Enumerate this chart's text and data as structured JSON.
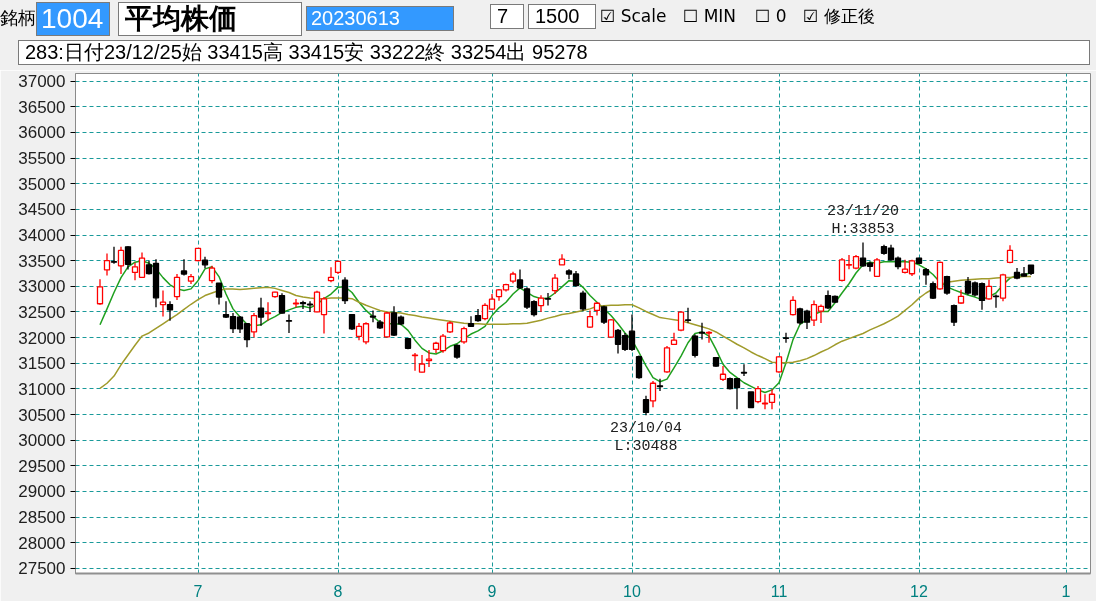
{
  "chart_data": {
    "type": "candlestick",
    "title": "平均株価",
    "subtitle": "283:日付23/12/25始 33415高 33415安 33222終 33254出 95278",
    "annotations": [
      "銘柄",
      "1004",
      "20230613",
      "7",
      "1500",
      "☑ Scale",
      "☐ MIN",
      "☐ 0",
      "☑ 修正後",
      {
        "text": "23/11/20\nH:33853",
        "y": 33853
      },
      {
        "text": "23/10/04\nL:30488",
        "y": 30488
      }
    ],
    "categories": [
      null,
      null,
      null,
      null,
      null,
      null,
      null,
      null,
      null,
      null,
      null,
      null,
      null,
      null,
      "7",
      null,
      null,
      null,
      null,
      null,
      null,
      null,
      null,
      null,
      null,
      null,
      null,
      null,
      null,
      null,
      null,
      null,
      null,
      null,
      "8",
      null,
      null,
      null,
      null,
      null,
      null,
      null,
      null,
      null,
      null,
      null,
      null,
      null,
      null,
      null,
      null,
      null,
      null,
      null,
      null,
      null,
      "9",
      null,
      null,
      null,
      null,
      null,
      null,
      null,
      null,
      null,
      null,
      null,
      null,
      null,
      null,
      null,
      null,
      null,
      null,
      null,
      "10",
      null,
      null,
      null,
      null,
      null,
      null,
      null,
      null,
      null,
      null,
      null,
      null,
      null,
      null,
      null,
      null,
      null,
      null,
      null,
      null,
      "11",
      null,
      null,
      null,
      null,
      null,
      null,
      null,
      null,
      null,
      null,
      null,
      null,
      null,
      null,
      null,
      null,
      null,
      null,
      null,
      "12",
      null,
      null,
      null,
      null,
      null,
      null,
      null,
      null,
      null,
      null,
      null,
      null,
      null,
      null,
      null,
      null,
      null,
      null,
      null,
      null,
      "1",
      null,
      null,
      null
    ],
    "ohlc": [
      [
        32660,
        33140,
        32640,
        32990
      ],
      [
        33320,
        33640,
        33210,
        33500
      ],
      [
        33480,
        33770,
        33440,
        33470
      ],
      [
        33400,
        33770,
        33240,
        33700
      ],
      [
        33770,
        33780,
        33330,
        33430
      ],
      [
        33270,
        33460,
        33120,
        33380
      ],
      [
        33175,
        33660,
        33170,
        33550
      ],
      [
        33420,
        33500,
        33230,
        33250
      ],
      [
        33445,
        33530,
        32590,
        32775
      ],
      [
        32645,
        32920,
        32410,
        32690
      ],
      [
        32645,
        32710,
        32330,
        32540
      ],
      [
        32800,
        33240,
        32735,
        33175
      ],
      [
        33300,
        33530,
        33210,
        33240
      ],
      [
        33100,
        33240,
        33045,
        33190
      ],
      [
        33500,
        33745,
        33490,
        33740
      ],
      [
        33510,
        33575,
        33350,
        33420
      ],
      [
        33110,
        33400,
        33060,
        33355
      ],
      [
        33060,
        33060,
        32645,
        32790
      ],
      [
        32450,
        32710,
        32380,
        32400
      ],
      [
        32410,
        32480,
        32090,
        32175
      ],
      [
        32400,
        32420,
        32090,
        32170
      ],
      [
        32270,
        32270,
        31810,
        31960
      ],
      [
        32110,
        32480,
        32000,
        32430
      ],
      [
        32575,
        32775,
        32230,
        32400
      ],
      [
        32470,
        32690,
        32330,
        32480
      ],
      [
        32800,
        32895,
        32775,
        32885
      ],
      [
        32820,
        32865,
        32470,
        32480
      ],
      [
        32330,
        32450,
        32090,
        32320
      ],
      [
        32660,
        32755,
        32590,
        32670
      ],
      [
        32680,
        32720,
        32560,
        32665
      ],
      [
        32650,
        32710,
        32500,
        32640
      ],
      [
        32500,
        32915,
        32495,
        32885
      ],
      [
        32450,
        32790,
        32080,
        32755
      ],
      [
        33110,
        33370,
        33080,
        33175
      ],
      [
        33270,
        33500,
        33240,
        33485
      ],
      [
        33120,
        33175,
        32655,
        32720
      ],
      [
        32450,
        32460,
        32150,
        32170
      ],
      [
        32025,
        32285,
        31950,
        32220
      ],
      [
        31915,
        32300,
        31870,
        32270
      ],
      [
        32420,
        32530,
        32300,
        32400
      ],
      [
        32300,
        32345,
        32170,
        32190
      ],
      [
        32015,
        32500,
        32000,
        32480
      ],
      [
        32480,
        32610,
        32030,
        32050
      ],
      [
        32400,
        32430,
        32240,
        32270
      ],
      [
        31980,
        31985,
        31775,
        31790
      ],
      [
        31650,
        31700,
        31355,
        31660
      ],
      [
        31325,
        31660,
        31320,
        31485
      ],
      [
        31550,
        31760,
        31425,
        31580
      ],
      [
        31770,
        31920,
        31700,
        31890
      ],
      [
        31745,
        32070,
        31705,
        32030
      ],
      [
        32110,
        32320,
        32090,
        32285
      ],
      [
        31850,
        31870,
        31590,
        31620
      ],
      [
        31915,
        32210,
        31880,
        32175
      ],
      [
        32270,
        32415,
        32210,
        32220
      ],
      [
        32430,
        32560,
        32310,
        32330
      ],
      [
        32370,
        32670,
        32340,
        32630
      ],
      [
        32555,
        32850,
        32545,
        32750
      ],
      [
        32800,
        32950,
        32720,
        32930
      ],
      [
        32930,
        33050,
        32900,
        33035
      ],
      [
        33100,
        33285,
        33060,
        33240
      ],
      [
        33125,
        33330,
        32950,
        32970
      ],
      [
        32950,
        32980,
        32560,
        32595
      ],
      [
        32700,
        32730,
        32410,
        32450
      ],
      [
        32625,
        32825,
        32500,
        32770
      ],
      [
        32760,
        32870,
        32625,
        32750
      ],
      [
        32915,
        33240,
        32850,
        33160
      ],
      [
        33420,
        33625,
        33420,
        33530
      ],
      [
        33300,
        33335,
        33140,
        33240
      ],
      [
        33240,
        33300,
        32995,
        33015
      ],
      [
        32865,
        32915,
        32525,
        32560
      ],
      [
        32205,
        32530,
        32190,
        32410
      ],
      [
        32530,
        32690,
        32430,
        32670
      ],
      [
        32600,
        32620,
        32265,
        32300
      ],
      [
        32010,
        32365,
        32000,
        32345
      ],
      [
        32140,
        32170,
        31690,
        31870
      ],
      [
        32040,
        32090,
        31740,
        31770
      ],
      [
        32125,
        32450,
        31740,
        31770
      ],
      [
        31627,
        31650,
        31200,
        31220
      ],
      [
        30790,
        30865,
        30488,
        30540
      ],
      [
        30765,
        31155,
        30640,
        31110
      ],
      [
        31060,
        31200,
        30960,
        31045
      ],
      [
        31330,
        31835,
        31315,
        31800
      ],
      [
        31867,
        32095,
        31855,
        31950
      ],
      [
        32145,
        32515,
        32125,
        32495
      ],
      [
        32345,
        32580,
        32290,
        32335
      ],
      [
        32030,
        32060,
        31610,
        31655
      ],
      [
        32100,
        32290,
        31965,
        32090
      ],
      [
        32090,
        32125,
        31900,
        32100
      ],
      [
        31610,
        31610,
        31430,
        31445
      ],
      [
        31187,
        31445,
        31155,
        31285
      ],
      [
        31200,
        31220,
        30990,
        31005
      ],
      [
        31200,
        31200,
        30605,
        31025
      ],
      [
        31320,
        31480,
        31250,
        31310
      ],
      [
        30940,
        30940,
        30625,
        30635
      ],
      [
        30750,
        31055,
        30720,
        31005
      ],
      [
        30710,
        30895,
        30605,
        30720
      ],
      [
        30735,
        30995,
        30605,
        30895
      ],
      [
        31330,
        31640,
        31315,
        31625
      ],
      [
        31995,
        32095,
        31900,
        31985
      ],
      [
        32450,
        32805,
        32430,
        32725
      ],
      [
        32560,
        32580,
        32255,
        32290
      ],
      [
        32515,
        32545,
        32170,
        32300
      ],
      [
        32340,
        32725,
        32225,
        32645
      ],
      [
        32515,
        32645,
        32285,
        32610
      ],
      [
        32820,
        32920,
        32560,
        32580
      ],
      [
        32805,
        32820,
        32675,
        32690
      ],
      [
        33115,
        33550,
        33095,
        33515
      ],
      [
        33415,
        33610,
        33335,
        33425
      ],
      [
        33355,
        33610,
        33335,
        33580
      ],
      [
        33550,
        33853,
        33380,
        33400
      ],
      [
        33450,
        33485,
        33290,
        33390
      ],
      [
        33195,
        33550,
        33190,
        33515
      ],
      [
        33775,
        33810,
        33615,
        33645
      ],
      [
        33745,
        33810,
        33505,
        33515
      ],
      [
        33550,
        33580,
        33335,
        33385
      ],
      [
        33270,
        33520,
        33250,
        33335
      ],
      [
        33245,
        33520,
        33200,
        33497
      ],
      [
        33550,
        33555,
        33450,
        33450
      ],
      [
        33325,
        33355,
        33030,
        33225
      ],
      [
        33050,
        33095,
        32755,
        32770
      ],
      [
        32950,
        33485,
        32935,
        33465
      ],
      [
        33190,
        33205,
        32835,
        32870
      ],
      [
        32625,
        32645,
        32225,
        32300
      ],
      [
        32675,
        32935,
        32660,
        32805
      ],
      [
        33095,
        33180,
        32835,
        32870
      ],
      [
        33065,
        33095,
        32805,
        32835
      ],
      [
        33050,
        33075,
        32545,
        32725
      ],
      [
        32755,
        33130,
        32740,
        33000
      ],
      [
        32810,
        32840,
        32580,
        32800
      ],
      [
        32770,
        33245,
        32710,
        33225
      ],
      [
        33465,
        33800,
        33450,
        33700
      ],
      [
        33270,
        33355,
        33140,
        33160
      ],
      [
        33240,
        33375,
        33190,
        33200
      ],
      [
        33415,
        33415,
        33222,
        33254
      ],
      null,
      null,
      null,
      null,
      null,
      null,
      null,
      null
    ],
    "colors": [
      "#ff0000",
      "#ff0000",
      "#000000",
      "#ff0000",
      "#000000",
      "#ff0000",
      "#ff0000",
      "#000000",
      "#000000",
      "#ff0000",
      "#000000",
      "#ff0000",
      "#000000",
      "#ff0000",
      "#ff0000",
      "#000000",
      "#ff0000",
      "#000000",
      "#000000",
      "#000000",
      "#000000",
      "#000000",
      "#ff0000",
      "#000000",
      "#ff0000",
      "#ff0000",
      "#000000",
      "#000000",
      "#ff0000",
      "#000000",
      "#000000",
      "#ff0000",
      "#ff0000",
      "#ff0000",
      "#ff0000",
      "#000000",
      "#000000",
      "#ff0000",
      "#ff0000",
      "#000000",
      "#000000",
      "#ff0000",
      "#000000",
      "#000000",
      "#000000",
      "#ff0000",
      "#ff0000",
      "#ff0000",
      "#ff0000",
      "#ff0000",
      "#ff0000",
      "#000000",
      "#ff0000",
      "#000000",
      "#000000",
      "#ff0000",
      "#ff0000",
      "#ff0000",
      "#ff0000",
      "#ff0000",
      "#000000",
      "#000000",
      "#000000",
      "#ff0000",
      "#000000",
      "#ff0000",
      "#ff0000",
      "#000000",
      "#000000",
      "#000000",
      "#ff0000",
      "#ff0000",
      "#000000",
      "#ff0000",
      "#000000",
      "#000000",
      "#000000",
      "#000000",
      "#000000",
      "#ff0000",
      "#000000",
      "#ff0000",
      "#ff0000",
      "#ff0000",
      "#000000",
      "#000000",
      "#000000",
      "#ff0000",
      "#000000",
      "#ff0000",
      "#000000",
      "#000000",
      "#000000",
      "#000000",
      "#ff0000",
      "#ff0000",
      "#ff0000",
      "#ff0000",
      "#000000",
      "#ff0000",
      "#000000",
      "#000000",
      "#ff0000",
      "#ff0000",
      "#000000",
      "#000000",
      "#ff0000",
      "#ff0000",
      "#ff0000",
      "#000000",
      "#000000",
      "#ff0000",
      "#000000",
      "#000000",
      "#000000",
      "#ff0000",
      "#ff0000",
      "#000000",
      "#000000",
      "#000000",
      "#ff0000",
      "#000000",
      "#000000",
      "#ff0000",
      "#000000",
      "#000000",
      "#000000",
      "#ff0000",
      "#000000",
      "#ff0000",
      "#ff0000",
      "#000000",
      "#000000",
      "#000000",
      null,
      null,
      null,
      null,
      null,
      null,
      null,
      null
    ],
    "series": [
      {
        "type": "line",
        "color": "#1fa01f",
        "values": [
          32250,
          32560,
          32880,
          33170,
          33380,
          33470,
          33500,
          33450,
          33340,
          33170,
          33030,
          32950,
          32920,
          32950,
          33110,
          33340,
          33380,
          33190,
          32850,
          32560,
          32400,
          32260,
          32230,
          32250,
          32340,
          32410,
          32490,
          32540,
          32590,
          32610,
          32580,
          32650,
          32760,
          32850,
          32980,
          32990,
          32880,
          32690,
          32530,
          32410,
          32300,
          32270,
          32270,
          32260,
          32140,
          31950,
          31790,
          31700,
          31680,
          31740,
          31830,
          31880,
          31980,
          32070,
          32130,
          32220,
          32430,
          32580,
          32690,
          32850,
          32970,
          32880,
          32800,
          32760,
          32770,
          32870,
          32990,
          33110,
          33100,
          32980,
          32820,
          32690,
          32560,
          32430,
          32270,
          32090,
          31950,
          31710,
          31450,
          31220,
          31140,
          31190,
          31410,
          31640,
          31900,
          32080,
          32110,
          32030,
          31770,
          31480,
          31320,
          31220,
          31120,
          31050,
          30980,
          30930,
          30980,
          31120,
          31510,
          31960,
          32260,
          32350,
          32450,
          32510,
          32510,
          32680,
          32870,
          33050,
          33260,
          33420,
          33470,
          33450,
          33480,
          33480,
          33480,
          33480,
          33470,
          33420,
          33340,
          33230,
          33080,
          32990,
          32930,
          32880,
          32830,
          32790,
          32740,
          32800,
          32870,
          33030,
          33160,
          33210,
          33230,
          33260,
          null,
          null,
          null,
          null,
          null,
          null,
          null,
          null
        ]
      },
      {
        "type": "line",
        "color": "#a09b2b",
        "values": [
          31010,
          31110,
          31250,
          31470,
          31660,
          31850,
          32030,
          32090,
          32180,
          32270,
          32360,
          32450,
          32550,
          32650,
          32740,
          32820,
          32870,
          32920,
          32950,
          32950,
          32940,
          32950,
          32960,
          32970,
          32980,
          32960,
          32920,
          32880,
          32820,
          32790,
          32770,
          32760,
          32760,
          32770,
          32770,
          32770,
          32760,
          32690,
          32630,
          32580,
          32530,
          32500,
          32490,
          32480,
          32450,
          32430,
          32400,
          32380,
          32360,
          32340,
          32320,
          32300,
          32280,
          32270,
          32270,
          32260,
          32260,
          32260,
          32260,
          32270,
          32270,
          32280,
          32310,
          32340,
          32380,
          32410,
          32450,
          32470,
          32500,
          32530,
          32560,
          32610,
          32620,
          32630,
          32630,
          32640,
          32640,
          32580,
          32510,
          32450,
          32390,
          32370,
          32350,
          32330,
          32290,
          32250,
          32210,
          32170,
          32110,
          32030,
          31950,
          31870,
          31800,
          31720,
          31650,
          31590,
          31520,
          31510,
          31510,
          31520,
          31550,
          31590,
          31650,
          31720,
          31780,
          31860,
          31930,
          31980,
          32030,
          32080,
          32150,
          32210,
          32270,
          32340,
          32420,
          32530,
          32640,
          32770,
          32870,
          32950,
          33030,
          33080,
          33100,
          33120,
          33130,
          33140,
          33150,
          33150,
          33160,
          33170,
          33170,
          33180,
          33190,
          33190,
          null,
          null,
          null,
          null,
          null,
          null,
          null,
          null
        ]
      }
    ],
    "ylim": [
      27400,
      37150
    ],
    "yticks": [
      27500,
      28000,
      28500,
      29000,
      29500,
      30000,
      30500,
      31000,
      31500,
      32000,
      32500,
      33000,
      33500,
      34000,
      34500,
      35000,
      35500,
      36000,
      36500,
      37000
    ],
    "grid": true
  }
}
